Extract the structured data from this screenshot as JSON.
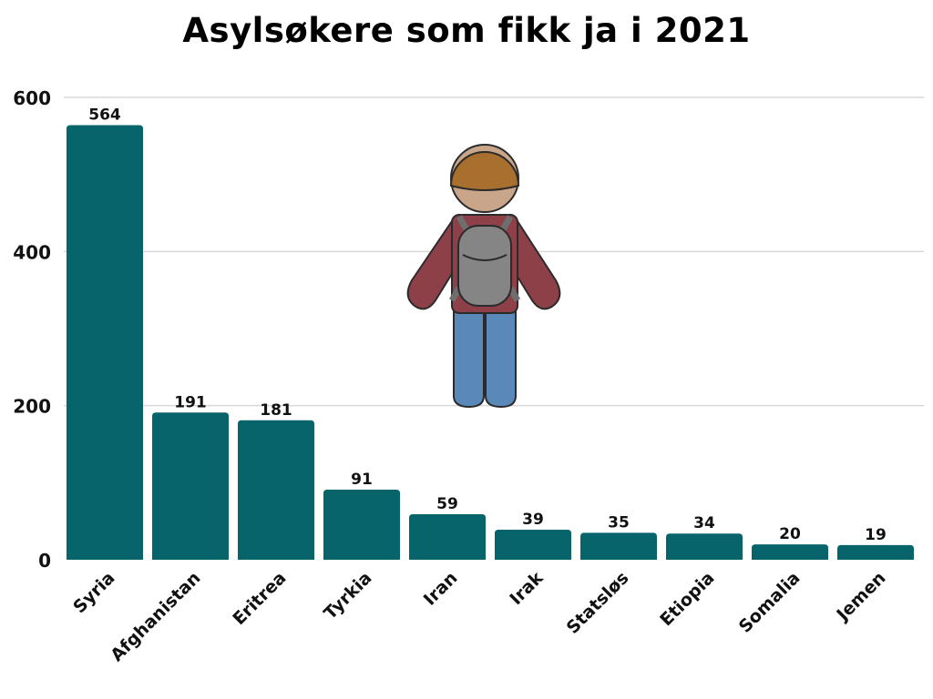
{
  "chart_data": {
    "type": "bar",
    "title": "Asylsøkere som fikk ja i 2021",
    "xlabel": "",
    "ylabel": "",
    "categories": [
      "Syria",
      "Afghanistan",
      "Eritrea",
      "Tyrkia",
      "Iran",
      "Irak",
      "Statsløs",
      "Etiopia",
      "Somalia",
      "Jemen"
    ],
    "values": [
      564,
      191,
      181,
      91,
      59,
      39,
      35,
      34,
      20,
      19
    ],
    "ylim": [
      0,
      600
    ],
    "yticks": [
      0,
      200,
      400,
      600
    ],
    "grid": true,
    "bar_color": "#07646b",
    "grid_color": "#d9d9d9"
  },
  "illustration": {
    "icon": "backpacker-person-icon",
    "colors": {
      "hair": "#a86f2e",
      "skin": "#c9a589",
      "jacket": "#8e4049",
      "backpack": "#858585",
      "jeans": "#5a89b9"
    }
  }
}
